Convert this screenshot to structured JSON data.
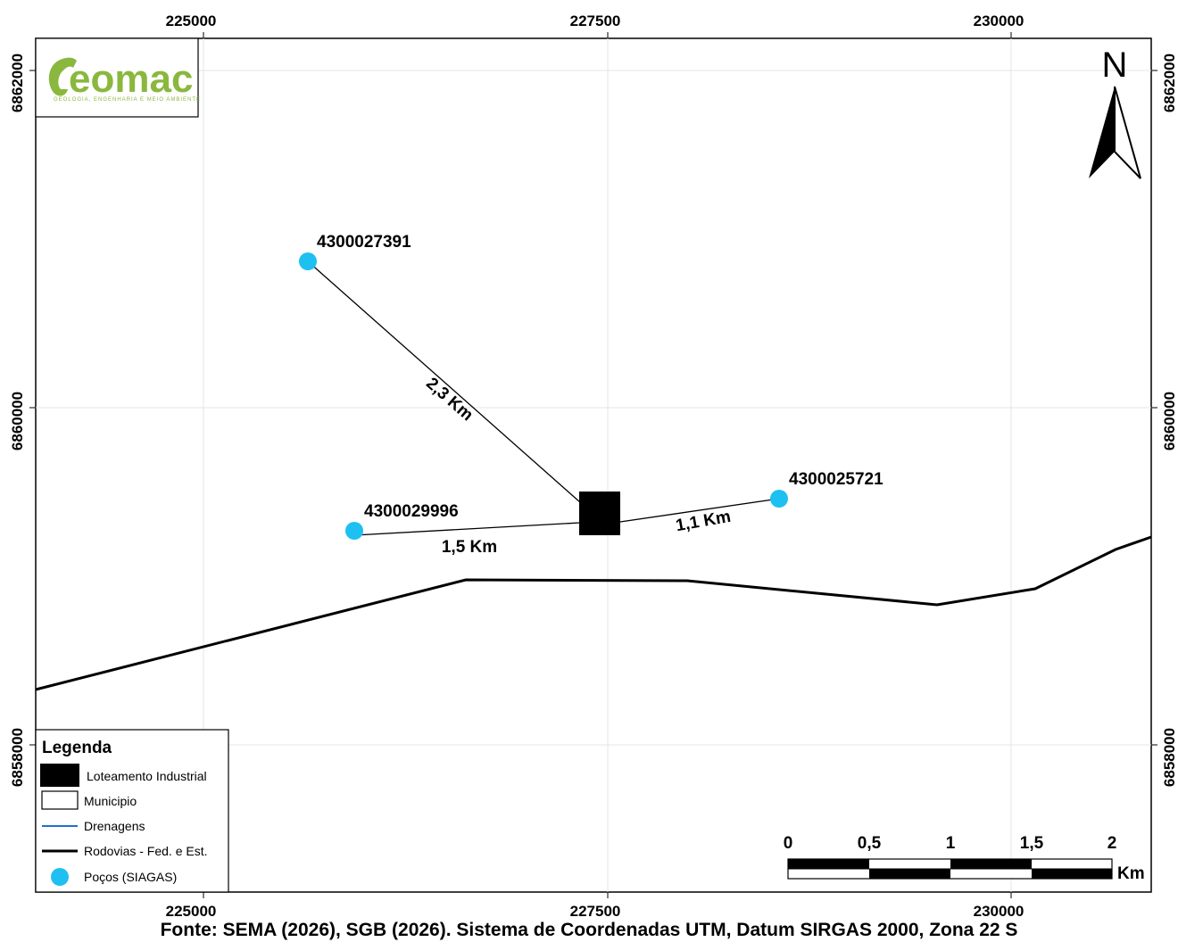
{
  "grid": {
    "x_ticks": [
      "225000",
      "227500",
      "230000"
    ],
    "y_ticks": [
      "6862000",
      "6860000",
      "6858000"
    ]
  },
  "logo": {
    "text": "eomac",
    "subtitle": "GEOLOGIA, ENGENHARIA E MEIO AMBIENTE"
  },
  "north_arrow": {
    "label": "N"
  },
  "wells": [
    {
      "id": "4300027391",
      "distance": "2,3 Km"
    },
    {
      "id": "4300029996",
      "distance": "1,5 Km"
    },
    {
      "id": "4300025721",
      "distance": "1,1 Km"
    }
  ],
  "legend": {
    "title": "Legenda",
    "items": [
      {
        "label": "Loteamento Industrial"
      },
      {
        "label": "Municipio"
      },
      {
        "label": "Drenagens"
      },
      {
        "label": "Rodovias - Fed. e Est."
      },
      {
        "label": "Poços (SIAGAS)"
      }
    ]
  },
  "scale_bar": {
    "labels": [
      "0",
      "0,5",
      "1",
      "1,5",
      "2"
    ],
    "unit": "Km"
  },
  "caption": "Fonte: SEMA (2026), SGB (2026). Sistema de Coordenadas UTM, Datum SIRGAS 2000, Zona 22 S",
  "colors": {
    "well": "#1ec0f2",
    "drainage": "#1f6fd1",
    "logo": "#8ab83e"
  }
}
